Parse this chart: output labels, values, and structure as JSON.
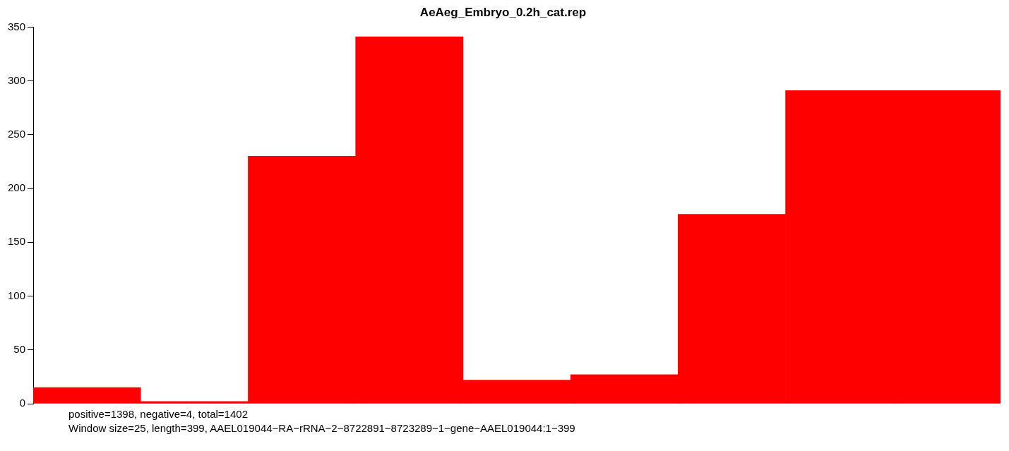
{
  "chart_data": {
    "type": "bar",
    "title": "AeAeg_Embryo_0.2h_cat.rep",
    "categories": [
      null,
      null,
      null,
      null,
      null,
      null,
      null,
      null,
      null
    ],
    "values": [
      15,
      2,
      230,
      341,
      22,
      27,
      176,
      291,
      291
    ],
    "color": "#ff0000",
    "ylim": [
      0,
      350
    ],
    "yticks": [
      0,
      50,
      100,
      150,
      200,
      250,
      300,
      350
    ],
    "grid": false,
    "legend": false,
    "annotations": [
      "positive=1398, negative=4, total=1402",
      "Window size=25, length=399, AAEL019044−RA−rRNA−2−8722891−8723289−1−gene−AAEL019044:1−399"
    ]
  }
}
